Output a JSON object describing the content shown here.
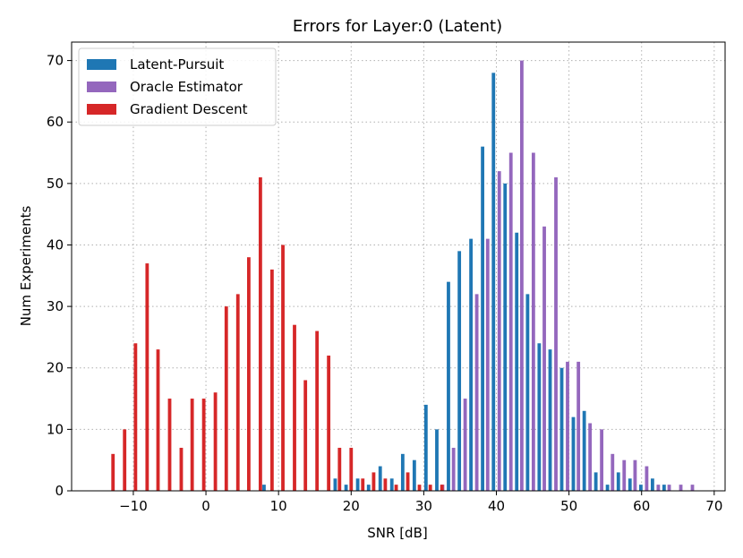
{
  "chart_data": {
    "type": "bar",
    "title": "Errors for Layer:0 (Latent)",
    "xlabel": "SNR [dB]",
    "ylabel": "Num Experiments",
    "xlim": [
      -18.5,
      71.5
    ],
    "ylim": [
      0,
      73
    ],
    "xticks": [
      -10,
      0,
      10,
      20,
      30,
      40,
      50,
      60,
      70
    ],
    "xtick_labels": [
      "−10",
      "0",
      "10",
      "20",
      "30",
      "40",
      "50",
      "60",
      "70"
    ],
    "yticks": [
      0,
      10,
      20,
      30,
      40,
      50,
      60,
      70
    ],
    "ytick_labels": [
      "0",
      "10",
      "20",
      "30",
      "40",
      "50",
      "60",
      "70"
    ],
    "grid": true,
    "legend_position": "top-left",
    "series": [
      {
        "name": "Latent-Pursuit",
        "color": "#1f77b4",
        "x": [
          8,
          17.8,
          19.3,
          20.9,
          22.4,
          24,
          25.6,
          27.1,
          28.7,
          30.3,
          31.8,
          33.4,
          34.9,
          36.5,
          38.1,
          39.6,
          41.2,
          42.8,
          44.3,
          45.9,
          47.4,
          49,
          50.6,
          52.1,
          53.7,
          55.3,
          56.8,
          58.4,
          59.9,
          61.5,
          63.1
        ],
        "values": [
          1,
          2,
          1,
          2,
          1,
          4,
          2,
          6,
          5,
          14,
          10,
          34,
          39,
          41,
          56,
          68,
          50,
          42,
          32,
          24,
          23,
          20,
          12,
          13,
          3,
          1,
          3,
          2,
          1,
          2,
          1
        ]
      },
      {
        "name": "Oracle Estimator",
        "color": "#9467bd",
        "x": [
          32.6,
          34.1,
          35.7,
          37.3,
          38.8,
          40.4,
          42,
          43.5,
          45.1,
          46.6,
          48.2,
          49.8,
          51.3,
          52.9,
          54.5,
          56,
          57.6,
          59.1,
          60.7,
          62.3,
          63.8,
          65.4,
          67
        ],
        "values": [
          1,
          7,
          15,
          32,
          41,
          52,
          55,
          70,
          55,
          43,
          51,
          21,
          21,
          11,
          10,
          6,
          5,
          5,
          4,
          1,
          1,
          1,
          1
        ]
      },
      {
        "name": "Gradient Descent",
        "color": "#d62728",
        "x": [
          -12.8,
          -11.2,
          -9.7,
          -8.1,
          -6.6,
          -5,
          -3.4,
          -1.9,
          -0.3,
          1.3,
          2.8,
          4.4,
          5.9,
          7.5,
          9.1,
          10.6,
          12.2,
          13.7,
          15.3,
          16.9,
          18.4,
          20,
          21.6,
          23.1,
          24.7,
          26.2,
          27.8,
          29.4,
          30.9,
          32.5
        ],
        "values": [
          6,
          10,
          24,
          37,
          23,
          15,
          7,
          15,
          15,
          16,
          30,
          32,
          38,
          51,
          36,
          40,
          27,
          18,
          26,
          22,
          7,
          7,
          2,
          3,
          2,
          1,
          3,
          1,
          1,
          1
        ]
      }
    ]
  }
}
